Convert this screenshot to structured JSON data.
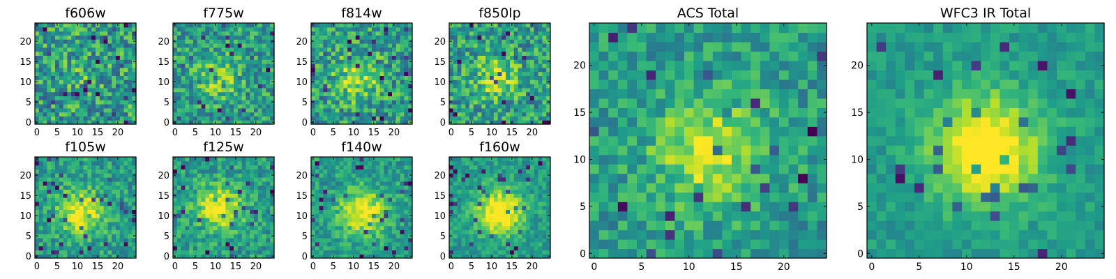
{
  "figure": {
    "panel_titles": [
      "f606w",
      "f775w",
      "f814w",
      "f850lp",
      "f105w",
      "f125w",
      "f140w",
      "f160w",
      "ACS Total",
      "WFC3 IR Total"
    ]
  },
  "chart_data": [
    {
      "type": "heatmap",
      "title": "f606w",
      "grid": [
        25,
        25
      ],
      "xlim": [
        -0.5,
        24.5
      ],
      "ylim": [
        -0.5,
        24.5
      ],
      "xticks": [
        0,
        5,
        10,
        15,
        20
      ],
      "yticks": [
        0,
        5,
        10,
        15,
        20
      ],
      "colormap": "viridis",
      "feature": {
        "bright_center": [
          11,
          11
        ],
        "strength": 0.1
      },
      "noise": 0.55,
      "seed": 11
    },
    {
      "type": "heatmap",
      "title": "f775w",
      "grid": [
        25,
        25
      ],
      "xlim": [
        -0.5,
        24.5
      ],
      "ylim": [
        -0.5,
        24.5
      ],
      "xticks": [
        0,
        5,
        10,
        15,
        20
      ],
      "yticks": [
        0,
        5,
        10,
        15,
        20
      ],
      "colormap": "viridis",
      "feature": {
        "bright_center": [
          11,
          11
        ],
        "strength": 0.25
      },
      "noise": 0.45,
      "seed": 23
    },
    {
      "type": "heatmap",
      "title": "f814w",
      "grid": [
        25,
        25
      ],
      "xlim": [
        -0.5,
        24.5
      ],
      "ylim": [
        -0.5,
        24.5
      ],
      "xticks": [
        0,
        5,
        10,
        15,
        20
      ],
      "yticks": [
        0,
        5,
        10,
        15,
        20
      ],
      "colormap": "viridis",
      "feature": {
        "bright_center": [
          11,
          11
        ],
        "strength": 0.3
      },
      "noise": 0.5,
      "seed": 37
    },
    {
      "type": "heatmap",
      "title": "f850lp",
      "grid": [
        25,
        25
      ],
      "xlim": [
        -0.5,
        24.5
      ],
      "ylim": [
        -0.5,
        24.5
      ],
      "xticks": [
        0,
        5,
        10,
        15,
        20
      ],
      "yticks": [
        0,
        5,
        10,
        15,
        20
      ],
      "colormap": "viridis",
      "feature": {
        "bright_center": [
          11,
          11
        ],
        "strength": 0.3
      },
      "noise": 0.5,
      "seed": 41
    },
    {
      "type": "heatmap",
      "title": "f105w",
      "grid": [
        25,
        25
      ],
      "xlim": [
        -0.5,
        24.5
      ],
      "ylim": [
        -0.5,
        24.5
      ],
      "xticks": [
        0,
        5,
        10,
        15,
        20
      ],
      "yticks": [
        0,
        5,
        10,
        15,
        20
      ],
      "colormap": "viridis",
      "feature": {
        "bright_center": [
          11,
          11
        ],
        "strength": 0.45
      },
      "noise": 0.35,
      "seed": 53
    },
    {
      "type": "heatmap",
      "title": "f125w",
      "grid": [
        25,
        25
      ],
      "xlim": [
        -0.5,
        24.5
      ],
      "ylim": [
        -0.5,
        24.5
      ],
      "xticks": [
        0,
        5,
        10,
        15,
        20
      ],
      "yticks": [
        0,
        5,
        10,
        15,
        20
      ],
      "colormap": "viridis",
      "feature": {
        "bright_center": [
          11,
          12
        ],
        "strength": 0.45
      },
      "noise": 0.35,
      "seed": 67
    },
    {
      "type": "heatmap",
      "title": "f140w",
      "grid": [
        25,
        25
      ],
      "xlim": [
        -0.5,
        24.5
      ],
      "ylim": [
        -0.5,
        24.5
      ],
      "xticks": [
        0,
        5,
        10,
        15,
        20
      ],
      "yticks": [
        0,
        5,
        10,
        15,
        20
      ],
      "colormap": "viridis",
      "feature": {
        "bright_center": [
          12,
          11
        ],
        "strength": 0.5
      },
      "noise": 0.32,
      "seed": 71
    },
    {
      "type": "heatmap",
      "title": "f160w",
      "grid": [
        25,
        25
      ],
      "xlim": [
        -0.5,
        24.5
      ],
      "ylim": [
        -0.5,
        24.5
      ],
      "xticks": [
        0,
        5,
        10,
        15,
        20
      ],
      "yticks": [
        0,
        5,
        10,
        15,
        20
      ],
      "colormap": "viridis",
      "feature": {
        "bright_center": [
          12,
          11
        ],
        "strength": 0.55
      },
      "noise": 0.28,
      "seed": 83
    },
    {
      "type": "heatmap",
      "title": "ACS Total",
      "grid": [
        25,
        25
      ],
      "xlim": [
        -0.5,
        24.5
      ],
      "ylim": [
        -0.5,
        24.5
      ],
      "xticks": [
        0,
        5,
        10,
        15,
        20
      ],
      "yticks": [
        0,
        5,
        10,
        15,
        20
      ],
      "colormap": "viridis",
      "feature": {
        "bright_center": [
          12,
          11
        ],
        "strength": 0.4
      },
      "noise": 0.35,
      "seed": 97
    },
    {
      "type": "heatmap",
      "title": "WFC3 IR Total",
      "grid": [
        25,
        25
      ],
      "xlim": [
        -0.5,
        24.5
      ],
      "ylim": [
        -0.5,
        24.5
      ],
      "xticks": [
        0,
        5,
        10,
        15,
        20
      ],
      "yticks": [
        0,
        5,
        10,
        15,
        20
      ],
      "colormap": "viridis",
      "feature": {
        "bright_center": [
          12,
          11
        ],
        "strength": 0.6
      },
      "noise": 0.2,
      "seed": 101
    }
  ]
}
